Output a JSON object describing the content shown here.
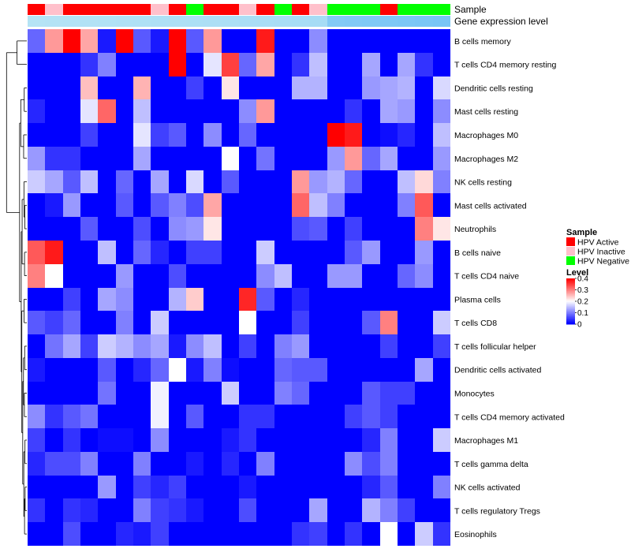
{
  "chart_data": {
    "type": "heatmap",
    "annotation_tracks": [
      {
        "name": "Sample",
        "values": [
          "HPV Active",
          "HPV Inactive",
          "HPV Active",
          "HPV Active",
          "HPV Active",
          "HPV Active",
          "HPV Active",
          "HPV Inactive",
          "HPV Active",
          "HPV Negative",
          "HPV Active",
          "HPV Active",
          "HPV Inactive",
          "HPV Active",
          "HPV Negative",
          "HPV Active",
          "HPV Inactive",
          "HPV Negative",
          "HPV Negative",
          "HPV Negative",
          "HPV Active",
          "HPV Negative",
          "HPV Negative",
          "HPV Negative"
        ]
      },
      {
        "name": "Gene expression level",
        "values": [
          0.95,
          0.94,
          0.93,
          0.92,
          0.91,
          0.9,
          0.89,
          0.88,
          0.87,
          0.86,
          0.85,
          0.84,
          0.83,
          0.82,
          0.81,
          0.8,
          0.79,
          0.4,
          0.38,
          0.36,
          0.34,
          0.32,
          0.3,
          0.28
        ]
      }
    ],
    "rows": [
      "B cells memory",
      "T cells CD4 memory resting",
      "Dendritic cells resting",
      "Mast cells resting",
      "Macrophages M0",
      "Macrophages M2",
      "NK cells resting",
      "Mast cells activated",
      "Neutrophils",
      "B cells naive",
      "T cells CD4 naive",
      "Plasma cells",
      "T cells CD8",
      "T cells follicular helper",
      "Dendritic cells activated",
      "Monocytes",
      "T cells CD4 memory activated",
      "Macrophages M1",
      "T cells gamma delta",
      "NK cells activated",
      "T cells regulatory  Tregs",
      "Eosinophils"
    ],
    "values": [
      [
        0.08,
        0.28,
        0.4,
        0.27,
        0.02,
        0.4,
        0.07,
        0.02,
        0.4,
        0.07,
        0.28,
        0,
        0,
        0.38,
        0,
        0,
        0.11,
        0,
        0,
        0,
        0,
        0,
        0,
        0
      ],
      [
        0,
        0,
        0,
        0.04,
        0.1,
        0,
        0,
        0,
        0.4,
        0,
        0.18,
        0.35,
        0.08,
        0.27,
        0,
        0.04,
        0.15,
        0,
        0,
        0.13,
        0,
        0.13,
        0.04,
        0
      ],
      [
        0,
        0,
        0,
        0.25,
        0,
        0,
        0.26,
        0,
        0,
        0.05,
        0,
        0.22,
        0,
        0,
        0,
        0.14,
        0.14,
        0,
        0,
        0.12,
        0.13,
        0.14,
        0,
        0.17
      ],
      [
        0.03,
        0,
        0,
        0.18,
        0.32,
        0,
        0.15,
        0,
        0,
        0,
        0,
        0,
        0.11,
        0.28,
        0,
        0,
        0,
        0,
        0.04,
        0,
        0.13,
        0.12,
        0,
        0.11
      ],
      [
        0,
        0,
        0,
        0.05,
        0,
        0,
        0.18,
        0.05,
        0.07,
        0,
        0.11,
        0,
        0.08,
        0,
        0,
        0,
        0,
        0.4,
        0.38,
        0,
        0.01,
        0.03,
        0,
        0.15
      ],
      [
        0.12,
        0.04,
        0.04,
        0,
        0,
        0,
        0.13,
        0,
        0,
        0,
        0,
        0.2,
        0,
        0.09,
        0,
        0,
        0,
        0.12,
        0.28,
        0.08,
        0.13,
        0,
        0,
        0.12
      ],
      [
        0.16,
        0.13,
        0.07,
        0.15,
        0,
        0.08,
        0,
        0.13,
        0,
        0.17,
        0,
        0.07,
        0,
        0,
        0,
        0.28,
        0.12,
        0.14,
        0.08,
        0,
        0,
        0.15,
        0.23,
        0.1
      ],
      [
        0,
        0.02,
        0.12,
        0,
        0,
        0.07,
        0,
        0.07,
        0.1,
        0.06,
        0.27,
        0,
        0,
        0,
        0,
        0.32,
        0.15,
        0.1,
        0,
        0,
        0,
        0.1,
        0.33,
        0
      ],
      [
        0,
        0,
        0,
        0.07,
        0,
        0,
        0.06,
        0,
        0.11,
        0.12,
        0.22,
        0,
        0,
        0,
        0,
        0.06,
        0.07,
        0,
        0.05,
        0,
        0,
        0,
        0.3,
        0.22
      ],
      [
        0.33,
        0.38,
        0,
        0,
        0.15,
        0,
        0.08,
        0.03,
        0,
        0.05,
        0.05,
        0,
        0,
        0.16,
        0,
        0,
        0,
        0,
        0.07,
        0.12,
        0,
        0,
        0.12,
        0
      ],
      [
        0.3,
        0.2,
        0,
        0,
        0,
        0.12,
        0,
        0,
        0.06,
        0,
        0,
        0,
        0,
        0.11,
        0.15,
        0,
        0,
        0.12,
        0.12,
        0,
        0,
        0.08,
        0.11,
        0
      ],
      [
        0,
        0,
        0.05,
        0,
        0.13,
        0.11,
        0,
        0,
        0.14,
        0.24,
        0,
        0,
        0.37,
        0.07,
        0,
        0.03,
        0,
        0,
        0,
        0,
        0,
        0,
        0,
        0
      ],
      [
        0.07,
        0.05,
        0.08,
        0,
        0,
        0.1,
        0,
        0.16,
        0,
        0,
        0,
        0,
        0.2,
        0,
        0,
        0.05,
        0,
        0,
        0,
        0.07,
        0.3,
        0,
        0,
        0.16
      ],
      [
        0,
        0.09,
        0.13,
        0.05,
        0.16,
        0.14,
        0.11,
        0.13,
        0.02,
        0.11,
        0.15,
        0,
        0.05,
        0,
        0.1,
        0.12,
        0,
        0,
        0,
        0,
        0.05,
        0,
        0,
        0.05
      ],
      [
        0.02,
        0,
        0,
        0,
        0.07,
        0,
        0.03,
        0.08,
        0.2,
        0.02,
        0.1,
        0.01,
        0,
        0,
        0.08,
        0.07,
        0.07,
        0,
        0,
        0,
        0,
        0,
        0.13,
        0
      ],
      [
        0,
        0,
        0,
        0,
        0.09,
        0,
        0,
        0.19,
        0,
        0,
        0,
        0.16,
        0,
        0,
        0.1,
        0.08,
        0,
        0,
        0,
        0.07,
        0.05,
        0.05,
        0,
        0
      ],
      [
        0.11,
        0.04,
        0.07,
        0.09,
        0,
        0,
        0,
        0.19,
        0,
        0.07,
        0,
        0,
        0.04,
        0.04,
        0,
        0,
        0,
        0,
        0.05,
        0.07,
        0.05,
        0,
        0,
        0
      ],
      [
        0.05,
        0,
        0.04,
        0,
        0.01,
        0.01,
        0,
        0.11,
        0,
        0,
        0,
        0.02,
        0.04,
        0,
        0,
        0,
        0,
        0,
        0,
        0.03,
        0.1,
        0,
        0,
        0.16
      ],
      [
        0.03,
        0.06,
        0.06,
        0.1,
        0,
        0,
        0.1,
        0,
        0,
        0.02,
        0,
        0.03,
        0,
        0.1,
        0,
        0,
        0,
        0,
        0.11,
        0.06,
        0.1,
        0,
        0,
        0
      ],
      [
        0,
        0,
        0,
        0,
        0.12,
        0,
        0.05,
        0.03,
        0.05,
        0,
        0,
        0,
        0.02,
        0,
        0,
        0,
        0,
        0,
        0,
        0.03,
        0.07,
        0,
        0,
        0.1
      ],
      [
        0.04,
        0,
        0.04,
        0.03,
        0,
        0,
        0.1,
        0.05,
        0.04,
        0.02,
        0,
        0,
        0.06,
        0,
        0,
        0,
        0.13,
        0,
        0,
        0.14,
        0.1,
        0.05,
        0,
        0
      ],
      [
        0,
        0,
        0.06,
        0,
        0,
        0.03,
        0.02,
        0.05,
        0,
        0,
        0,
        0,
        0,
        0,
        0,
        0.04,
        0.05,
        0,
        0.04,
        0,
        0.2,
        0,
        0.16,
        0.04
      ]
    ],
    "legend": {
      "sample_title": "Sample",
      "sample_items": [
        {
          "label": "HPV Active",
          "color": "#ff0000"
        },
        {
          "label": "HPV Inactive",
          "color": "#ffc0cb"
        },
        {
          "label": "HPV Negative",
          "color": "#00ff00"
        }
      ],
      "level_title": "Level",
      "level_ticks": [
        "0.4",
        "0.3",
        "0.2",
        "0.1",
        "0"
      ],
      "level_range": [
        0,
        0.4
      ]
    },
    "colors": {
      "low": "#0000ff",
      "mid": "#ffffff",
      "high": "#ff0000",
      "gene_high": "#b9e6f5",
      "gene_low": "#5fb8f5",
      "dendrogram": "#000000"
    }
  }
}
